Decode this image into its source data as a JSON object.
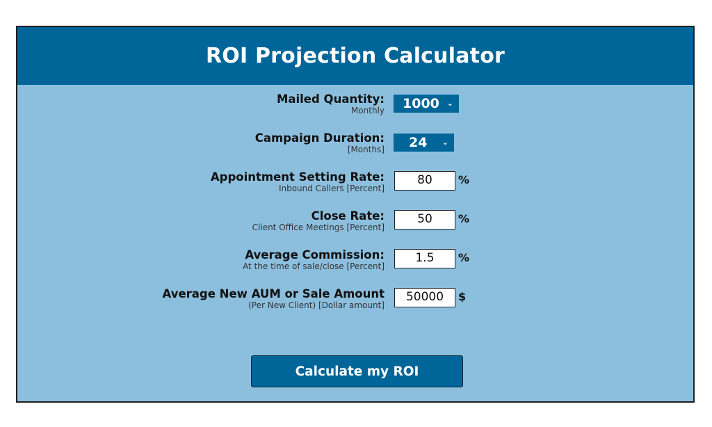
{
  "title": "ROI Projection Calculator",
  "fields": {
    "mailed_quantity": {
      "label": "Mailed Quantity:",
      "sub": "Monthly",
      "value": "1000",
      "chevron": "⌄"
    },
    "campaign_duration": {
      "label": "Campaign Duration:",
      "sub": "[Months]",
      "value": "24",
      "chevron": "⌄"
    },
    "appointment_rate": {
      "label": "Appointment Setting Rate:",
      "sub": "Inbound Callers [Percent]",
      "value": "80",
      "unit": "%"
    },
    "close_rate": {
      "label": "Close Rate:",
      "sub": "Client Office Meetings [Percent]",
      "value": "50",
      "unit": "%"
    },
    "avg_commission": {
      "label": "Average Commission:",
      "sub": "At the time of sale/close [Percent]",
      "value": "1.5",
      "unit": "%"
    },
    "avg_aum": {
      "label": "Average New AUM or Sale Amount",
      "sub": "(Per New Client) [Dollar amount]",
      "value": "50000",
      "unit": "$"
    }
  },
  "button": {
    "label": "Calculate my ROI"
  },
  "colors": {
    "header": "#006699",
    "panel": "#8cbfde",
    "button": "#006699"
  }
}
